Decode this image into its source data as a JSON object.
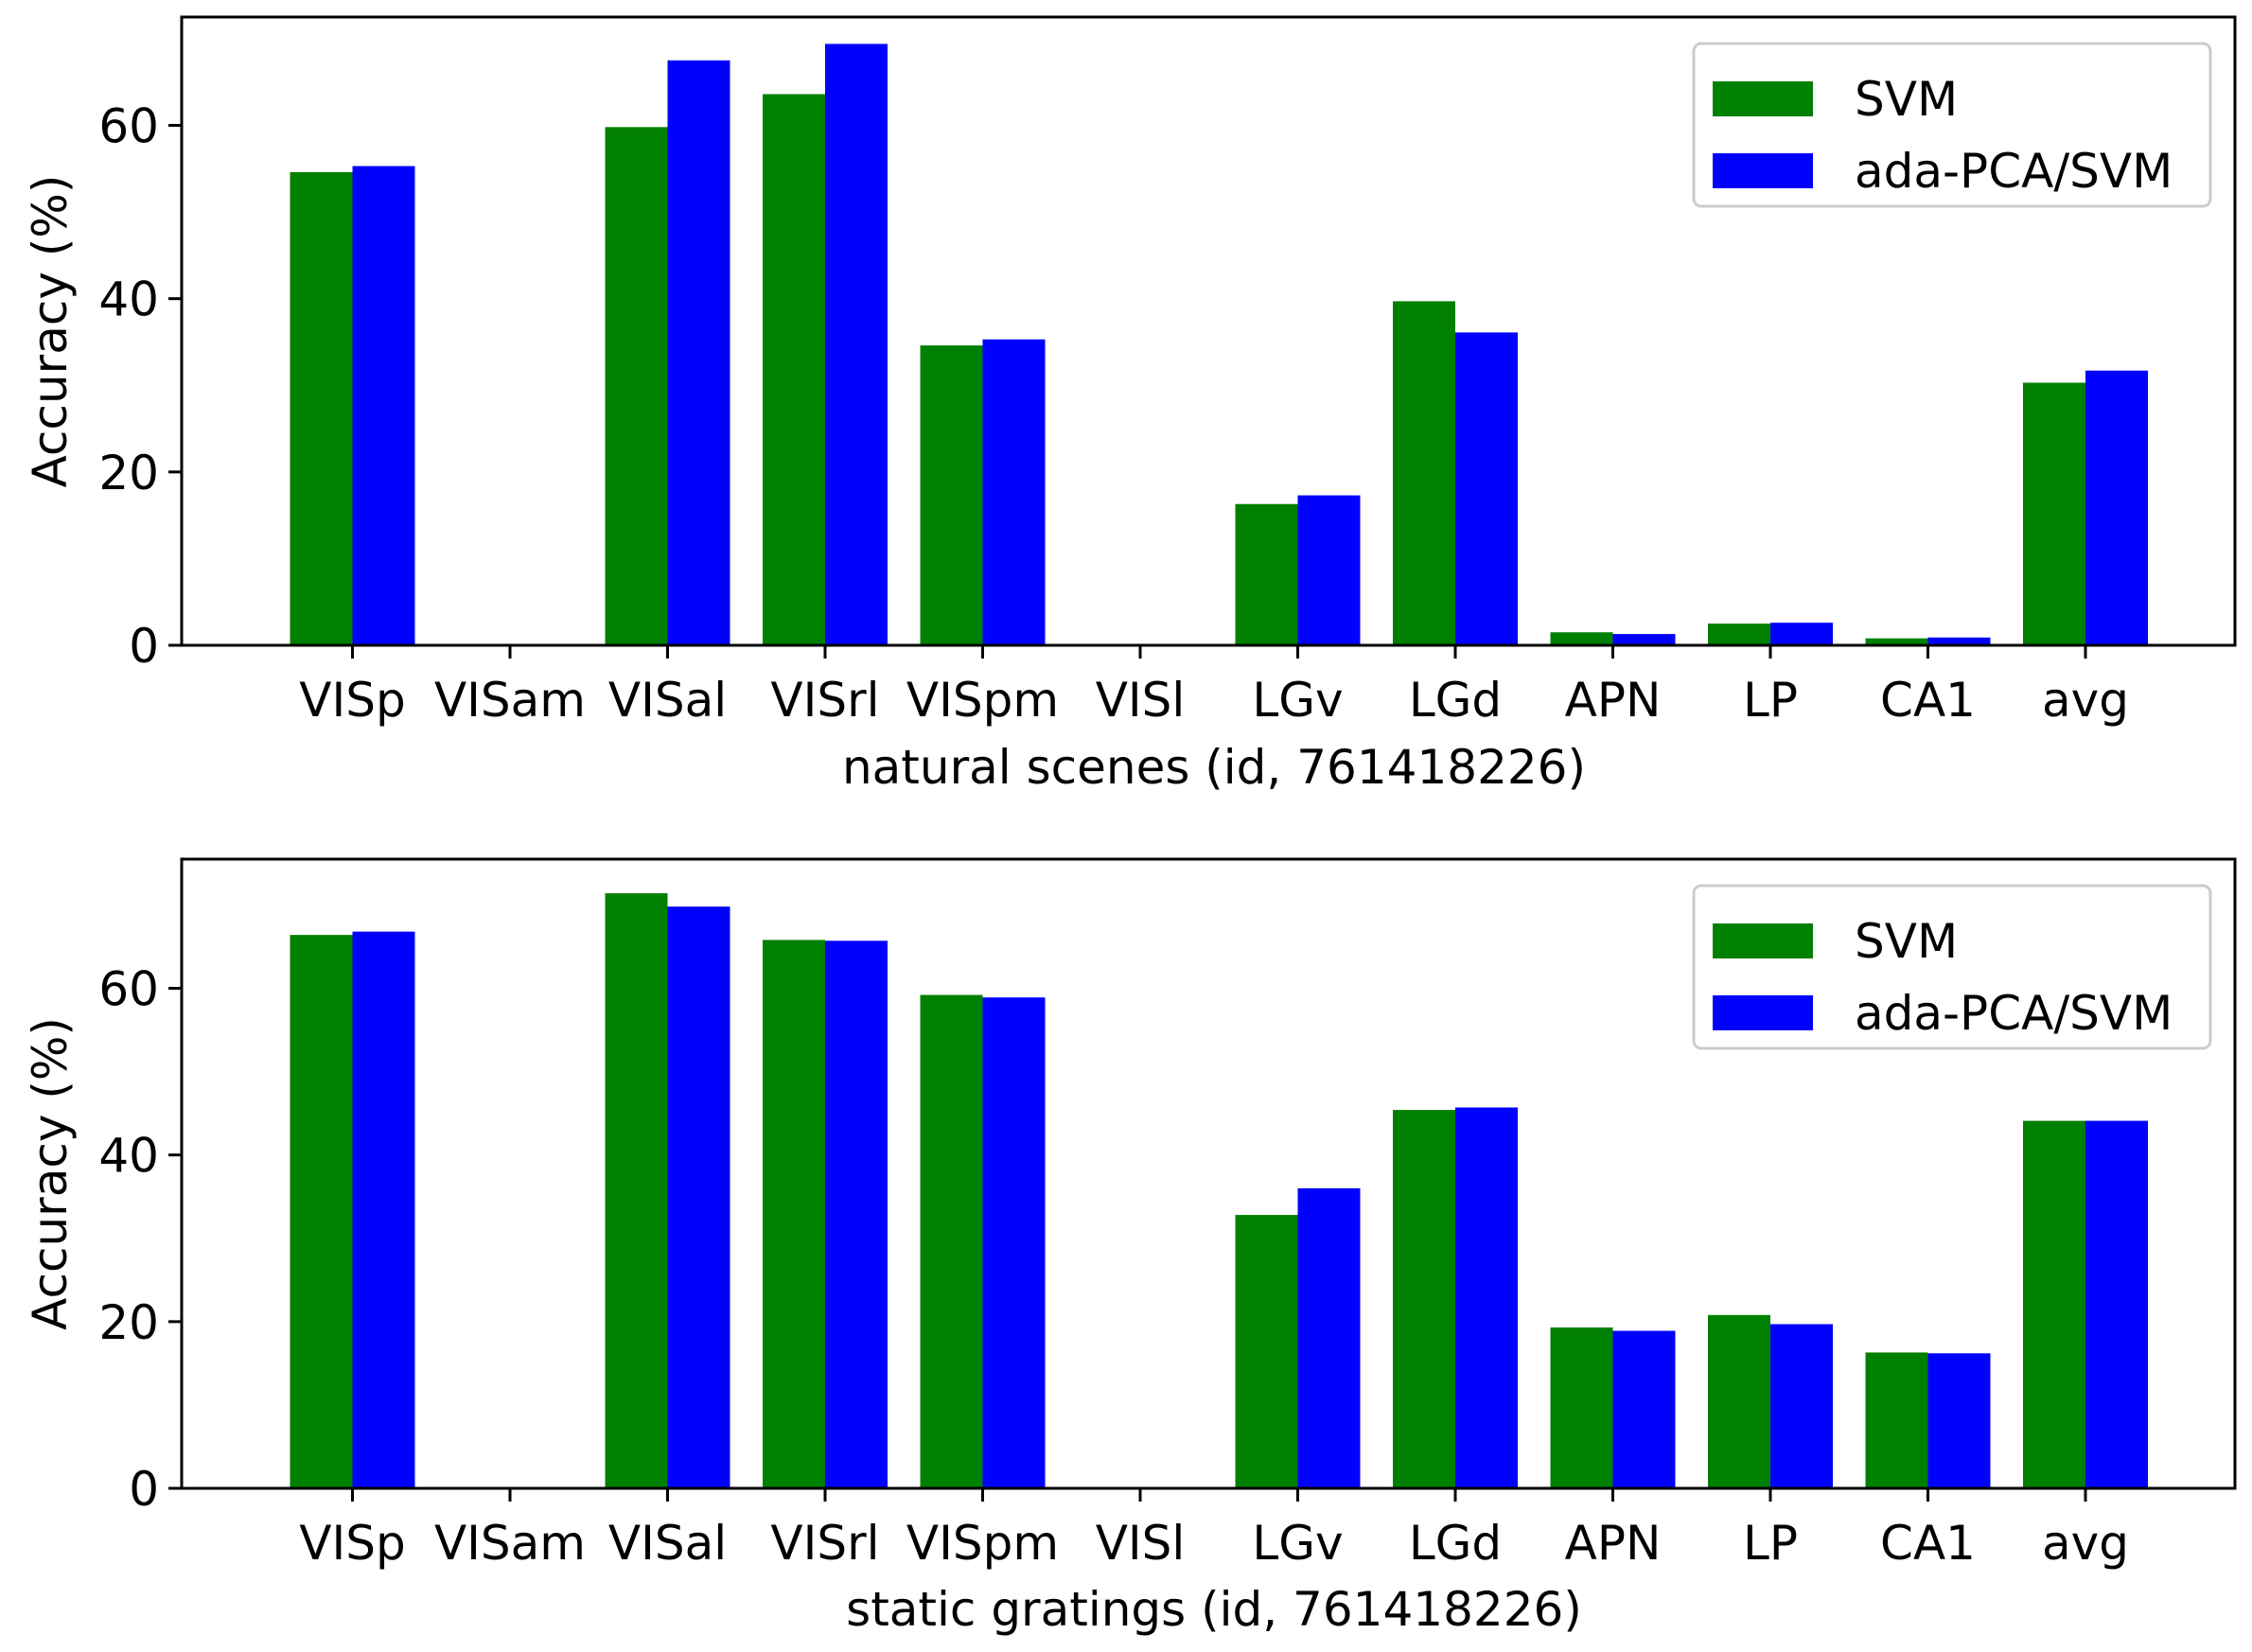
{
  "colors": {
    "svm": "#008000",
    "ada": "#0000ff",
    "axis": "#000000",
    "legend_border": "#cccccc"
  },
  "chart_data": [
    {
      "type": "bar",
      "title": "",
      "xlabel": "natural scenes (id, 761418226)",
      "ylabel": "Accuracy (%)",
      "ylim": [
        0,
        72.5
      ],
      "yticks": [
        0,
        20,
        40,
        60
      ],
      "legend_position": "top-right",
      "categories": [
        "VISp",
        "VISam",
        "VISal",
        "VISrl",
        "VISpm",
        "VISl",
        "LGv",
        "LGd",
        "APN",
        "LP",
        "CA1",
        "avg"
      ],
      "series": [
        {
          "name": "SVM",
          "color": "#008000",
          "values": [
            54.6,
            0,
            59.8,
            63.6,
            34.6,
            0,
            16.3,
            39.7,
            1.5,
            2.5,
            0.8,
            30.3
          ]
        },
        {
          "name": "ada-PCA/SVM",
          "color": "#0000ff",
          "values": [
            55.3,
            0,
            67.5,
            69.4,
            35.3,
            0,
            17.3,
            36.1,
            1.3,
            2.6,
            0.9,
            31.7
          ]
        }
      ]
    },
    {
      "type": "bar",
      "title": "",
      "xlabel": "static gratings (id, 761418226)",
      "ylabel": "Accuracy (%)",
      "ylim": [
        0,
        75.5
      ],
      "yticks": [
        0,
        20,
        40,
        60
      ],
      "legend_position": "top-right",
      "categories": [
        "VISp",
        "VISam",
        "VISal",
        "VISrl",
        "VISpm",
        "VISl",
        "LGv",
        "LGd",
        "APN",
        "LP",
        "CA1",
        "avg"
      ],
      "series": [
        {
          "name": "SVM",
          "color": "#008000",
          "values": [
            66.4,
            0,
            71.4,
            65.8,
            59.2,
            0,
            32.8,
            45.4,
            19.3,
            20.8,
            16.3,
            44.1
          ]
        },
        {
          "name": "ada-PCA/SVM",
          "color": "#0000ff",
          "values": [
            66.8,
            0,
            69.8,
            65.7,
            58.9,
            0,
            36.0,
            45.7,
            18.9,
            19.7,
            16.2,
            44.1
          ]
        }
      ]
    }
  ]
}
